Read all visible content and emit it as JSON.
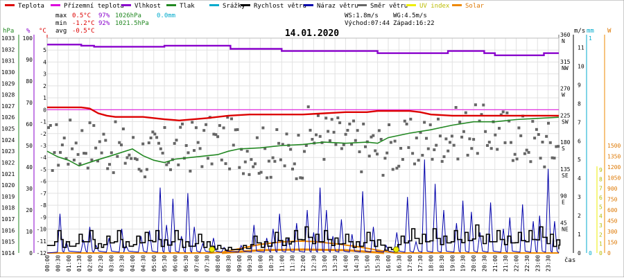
{
  "chart_data": {
    "type": "line",
    "title": "14.01.2020",
    "xlabel": "čas",
    "legend": [
      {
        "name": "Teplota",
        "color": "#dd0000"
      },
      {
        "name": "Přízemní teplota",
        "color": "#dd00dd"
      },
      {
        "name": "Vlhkost",
        "color": "#8800cc"
      },
      {
        "name": "Tlak",
        "color": "#228822"
      },
      {
        "name": "Srážky",
        "color": "#00aacc"
      },
      {
        "name": "Rychlost větru",
        "color": "#000000"
      },
      {
        "name": "Náraz větru",
        "color": "#0000aa"
      },
      {
        "name": "Směr větru",
        "color": "#666666"
      },
      {
        "name": "UV index",
        "color": "#eeee00"
      },
      {
        "name": "Solar",
        "color": "#ee8800"
      }
    ],
    "stats": {
      "max": {
        "label": "max",
        "temp": "0.5°C",
        "hum": "97%",
        "press": "1026hPa",
        "rain": "0.0mm"
      },
      "min": {
        "label": "min",
        "temp": "-1.2°C",
        "hum": "92%",
        "press": "1021.5hPa"
      },
      "avg": {
        "label": "avg",
        "temp": "-0.5°C"
      },
      "wind": "WS:1.8m/s",
      "gust": "WG:4.5m/s",
      "sunrise": "Východ:07:44",
      "sunset": "Západ:16:22"
    },
    "axes": {
      "hpa": {
        "unit": "hPa",
        "range": [
          1014,
          1033
        ],
        "ticks": [
          "1014",
          "1015",
          "1016",
          "1017",
          "1018",
          "1019",
          "1020",
          "1021",
          "1022",
          "1023",
          "1024",
          "1025",
          "1026",
          "1027",
          "1028",
          "1029",
          "1030",
          "1031",
          "1032",
          "1033"
        ]
      },
      "percent": {
        "unit": "%",
        "range": [
          0,
          100
        ],
        "ticks": [
          "0",
          "10",
          "20",
          "30",
          "40",
          "50",
          "60",
          "70",
          "80",
          "90",
          "100"
        ]
      },
      "celsius": {
        "unit": "°C",
        "range": [
          -12,
          6
        ],
        "ticks": [
          "-12",
          "-11",
          "-10",
          "-9",
          "-8",
          "-7",
          "-6",
          "-5",
          "-4",
          "-3",
          "-2",
          "-1",
          "0",
          "1",
          "2",
          "3",
          "4",
          "5"
        ]
      },
      "direction": {
        "range": [
          0,
          360
        ],
        "ticks": [
          {
            "v": 45,
            "n": "45",
            "d": "NE"
          },
          {
            "v": 90,
            "n": "90",
            "d": "E"
          },
          {
            "v": 135,
            "n": "135",
            "d": "SE"
          },
          {
            "v": 180,
            "n": "180",
            "d": "S"
          },
          {
            "v": 225,
            "n": "225",
            "d": "SW"
          },
          {
            "v": 270,
            "n": "270",
            "d": "W"
          },
          {
            "v": 315,
            "n": "315",
            "d": "NW"
          },
          {
            "v": 360,
            "n": "360",
            "d": "N"
          }
        ]
      },
      "ms": {
        "unit": "m/s",
        "range": [
          0,
          11.5
        ],
        "ticks": [
          "0",
          "1",
          "2",
          "3",
          "4",
          "5",
          "6",
          "7",
          "8",
          "9",
          "10",
          "11"
        ]
      },
      "mm": {
        "unit": "mm",
        "ticks": [
          "0",
          "1"
        ]
      },
      "uv": {
        "unit": "",
        "ticks": [
          "0",
          "1",
          "2",
          "3",
          "4",
          "5",
          "6",
          "7",
          "8",
          "9"
        ]
      },
      "wm2": {
        "unit": "W",
        "ticks": [
          "0",
          "150",
          "300",
          "450",
          "600",
          "750",
          "900",
          "1050",
          "1200",
          "1350",
          "1500"
        ]
      }
    },
    "x_ticks": [
      "00:00",
      "00:30",
      "01:00",
      "01:30",
      "02:00",
      "02:30",
      "03:00",
      "03:30",
      "04:00",
      "04:30",
      "05:00",
      "05:30",
      "06:00",
      "06:30",
      "07:00",
      "07:30",
      "08:00",
      "08:30",
      "09:00",
      "09:30",
      "10:00",
      "10:30",
      "11:00",
      "11:30",
      "12:00",
      "12:30",
      "13:00",
      "13:30",
      "14:00",
      "14:30",
      "15:00",
      "15:30",
      "16:00",
      "16:30",
      "17:00",
      "17:30",
      "18:00",
      "18:30",
      "19:00",
      "19:30",
      "20:00",
      "20:30",
      "21:00",
      "21:30",
      "22:00",
      "22:30",
      "23:00",
      "23:30"
    ],
    "series": {
      "temperature": [
        [
          0,
          0.2
        ],
        [
          1.6,
          0.2
        ],
        [
          2,
          0.1
        ],
        [
          2.4,
          -0.3
        ],
        [
          2.8,
          -0.5
        ],
        [
          3.2,
          -0.6
        ],
        [
          4.5,
          -0.6
        ],
        [
          5.5,
          -0.8
        ],
        [
          6.2,
          -0.9
        ],
        [
          7.5,
          -0.7
        ],
        [
          8.5,
          -0.5
        ],
        [
          9.5,
          -0.4
        ],
        [
          10.5,
          -0.4
        ],
        [
          12,
          -0.4
        ],
        [
          13,
          -0.3
        ],
        [
          14,
          -0.2
        ],
        [
          15,
          -0.2
        ],
        [
          15.5,
          -0.1
        ],
        [
          16,
          -0.1
        ],
        [
          17,
          -0.1
        ],
        [
          17.5,
          -0.2
        ],
        [
          18,
          -0.4
        ],
        [
          19,
          -0.5
        ],
        [
          21,
          -0.5
        ],
        [
          24,
          -0.5
        ]
      ],
      "ground_temperature": [
        [
          0,
          0
        ],
        [
          24,
          0
        ]
      ],
      "humidity": [
        [
          0,
          97
        ],
        [
          1.3,
          97
        ],
        [
          1.6,
          96.5
        ],
        [
          2.2,
          96
        ],
        [
          5.3,
          96
        ],
        [
          5.5,
          96.5
        ],
        [
          8.4,
          96.5
        ],
        [
          8.6,
          95
        ],
        [
          10.5,
          95
        ],
        [
          11,
          94
        ],
        [
          12.8,
          94
        ],
        [
          15,
          94
        ],
        [
          15.5,
          93
        ],
        [
          18,
          93
        ],
        [
          18.8,
          94
        ],
        [
          20.5,
          93
        ],
        [
          21,
          92
        ],
        [
          23,
          92
        ],
        [
          23.3,
          93
        ],
        [
          24,
          93
        ]
      ],
      "pressure": [
        [
          0,
          1023
        ],
        [
          0.5,
          1022.5
        ],
        [
          1,
          1022.2
        ],
        [
          1.5,
          1021.7
        ],
        [
          2.3,
          1022.2
        ],
        [
          3,
          1022.6
        ],
        [
          4,
          1023.2
        ],
        [
          4.5,
          1022.6
        ],
        [
          5,
          1022.2
        ],
        [
          5.5,
          1022
        ],
        [
          6,
          1022.3
        ],
        [
          7,
          1022.5
        ],
        [
          8,
          1022.7
        ],
        [
          8.5,
          1023
        ],
        [
          9,
          1023.2
        ],
        [
          10,
          1023.3
        ],
        [
          11,
          1023.5
        ],
        [
          12,
          1023.6
        ],
        [
          13,
          1023.8
        ],
        [
          14,
          1023.7
        ],
        [
          15,
          1023.8
        ],
        [
          15.5,
          1023.7
        ],
        [
          16,
          1024.2
        ],
        [
          17,
          1024.6
        ],
        [
          18,
          1024.9
        ],
        [
          19,
          1025.3
        ],
        [
          20,
          1025.6
        ],
        [
          21,
          1025.6
        ],
        [
          22,
          1025.8
        ],
        [
          23,
          1025.9
        ],
        [
          24,
          1026
        ]
      ],
      "solar": [
        [
          0,
          0
        ],
        [
          7.7,
          0
        ],
        [
          8.2,
          10
        ],
        [
          9,
          60
        ],
        [
          10,
          120
        ],
        [
          11,
          155
        ],
        [
          11.8,
          165
        ],
        [
          12.5,
          160
        ],
        [
          13.5,
          130
        ],
        [
          14.5,
          90
        ],
        [
          15.5,
          40
        ],
        [
          16.3,
          0
        ],
        [
          24,
          0
        ]
      ],
      "uv_points": [
        [
          7.73,
          0
        ],
        [
          16.37,
          0
        ]
      ],
      "gust_peaks": [
        [
          0.6,
          2.1
        ],
        [
          0.9,
          0.6
        ],
        [
          1.7,
          0.7
        ],
        [
          2.0,
          1.4
        ],
        [
          2.3,
          0.4
        ],
        [
          2.9,
          0.8
        ],
        [
          3.5,
          1.3
        ],
        [
          3.7,
          0.4
        ],
        [
          4.4,
          0.9
        ],
        [
          4.8,
          1.2
        ],
        [
          5.3,
          3.5
        ],
        [
          5.6,
          1.5
        ],
        [
          5.9,
          2.9
        ],
        [
          6.3,
          0.9
        ],
        [
          6.6,
          3.2
        ],
        [
          6.9,
          1.4
        ],
        [
          7.3,
          0.5
        ],
        [
          7.8,
          0.8
        ],
        [
          8.3,
          0.3
        ],
        [
          9.1,
          0.4
        ],
        [
          9.7,
          1.5
        ],
        [
          10.3,
          0.8
        ],
        [
          10.6,
          1.3
        ],
        [
          10.9,
          2.1
        ],
        [
          11.3,
          0.8
        ],
        [
          11.7,
          1.6
        ],
        [
          12.2,
          2.3
        ],
        [
          12.5,
          1.1
        ],
        [
          12.8,
          3.5
        ],
        [
          13.1,
          2.3
        ],
        [
          13.4,
          0.9
        ],
        [
          13.8,
          1.8
        ],
        [
          14.3,
          1.0
        ],
        [
          14.8,
          3.3
        ],
        [
          15.3,
          1.4
        ],
        [
          15.9,
          0.4
        ],
        [
          16.4,
          1.1
        ],
        [
          16.9,
          3.0
        ],
        [
          17.3,
          0.6
        ],
        [
          17.7,
          5.0
        ],
        [
          18.2,
          3.7
        ],
        [
          18.6,
          2.3
        ],
        [
          19.2,
          1.6
        ],
        [
          19.5,
          2.8
        ],
        [
          19.9,
          2.2
        ],
        [
          20.3,
          1.1
        ],
        [
          20.8,
          2.7
        ],
        [
          21.4,
          1.3
        ],
        [
          21.7,
          1.9
        ],
        [
          22.3,
          2.6
        ],
        [
          22.8,
          1.7
        ],
        [
          23.1,
          2.0
        ],
        [
          23.5,
          4.5
        ],
        [
          23.8,
          1.7
        ]
      ],
      "speed_peaks": [
        [
          0.5,
          1.2
        ],
        [
          0.9,
          0.6
        ],
        [
          1.5,
          1.0
        ],
        [
          2.0,
          1.2
        ],
        [
          2.4,
          0.5
        ],
        [
          2.8,
          0.9
        ],
        [
          3.3,
          1.2
        ],
        [
          3.7,
          0.6
        ],
        [
          4.2,
          0.9
        ],
        [
          4.6,
          1.1
        ],
        [
          5.1,
          1.2
        ],
        [
          5.5,
          0.7
        ],
        [
          6.0,
          1.2
        ],
        [
          6.5,
          0.6
        ],
        [
          7.1,
          1.0
        ],
        [
          7.5,
          0.6
        ],
        [
          8.0,
          0.4
        ],
        [
          8.5,
          0.3
        ],
        [
          9.2,
          0.4
        ],
        [
          9.7,
          0.9
        ],
        [
          10.2,
          0.6
        ],
        [
          10.7,
          1.1
        ],
        [
          11.2,
          0.8
        ],
        [
          11.6,
          1.2
        ],
        [
          12.1,
          1.4
        ],
        [
          12.6,
          1.0
        ],
        [
          13.0,
          1.2
        ],
        [
          13.5,
          0.8
        ],
        [
          14.0,
          1.0
        ],
        [
          14.5,
          0.6
        ],
        [
          15.0,
          1.1
        ],
        [
          15.5,
          0.7
        ],
        [
          16.0,
          0.3
        ],
        [
          16.6,
          0.9
        ],
        [
          17.1,
          1.3
        ],
        [
          17.6,
          1.0
        ],
        [
          18.1,
          1.3
        ],
        [
          18.6,
          0.9
        ],
        [
          19.1,
          1.2
        ],
        [
          19.6,
          1.1
        ],
        [
          20.1,
          1.5
        ],
        [
          20.6,
          1.0
        ],
        [
          21.1,
          1.2
        ],
        [
          21.6,
          0.9
        ],
        [
          22.1,
          1.1
        ],
        [
          22.6,
          1.2
        ],
        [
          23.1,
          1.4
        ],
        [
          23.6,
          1.0
        ],
        [
          23.9,
          0.7
        ]
      ],
      "wind_direction_seed": 17
    }
  }
}
